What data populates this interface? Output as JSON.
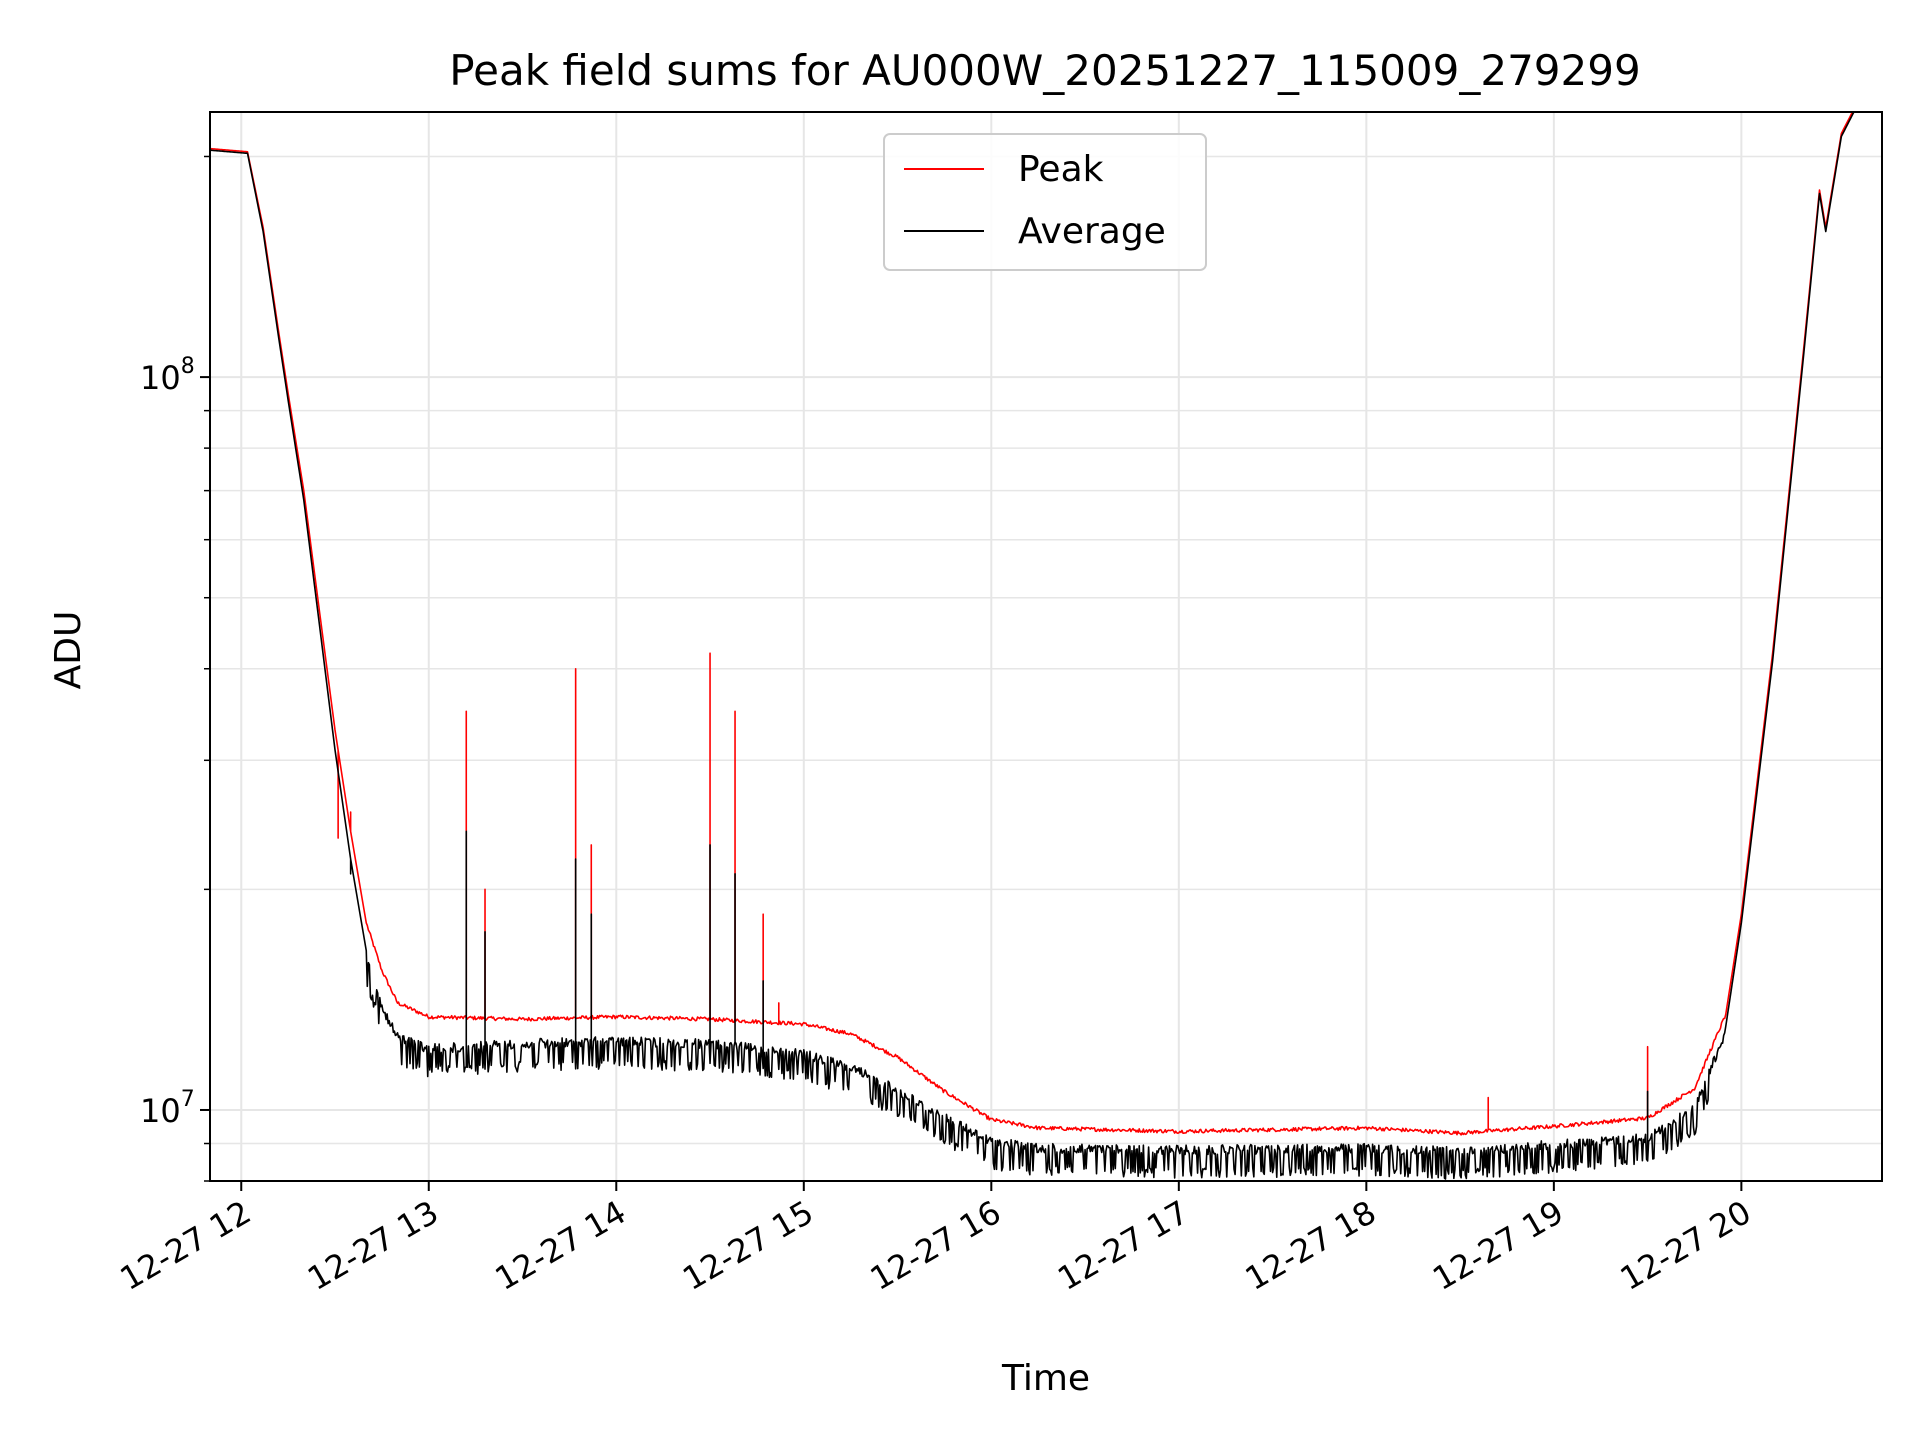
{
  "chart_data": {
    "type": "line",
    "title": "Peak field sums for AU000W_20251227_115009_279299",
    "xlabel": "Time",
    "ylabel": "ADU",
    "yscale": "log",
    "ylim": [
      8000000,
      230000000
    ],
    "xlim": [
      "2025-12-27 11:50",
      "2025-12-27 20:45"
    ],
    "grid": true,
    "legend": {
      "placement": "upper center"
    },
    "x_ticks": [
      {
        "x": "2025-12-27 12:00",
        "label": "12-27 12"
      },
      {
        "x": "2025-12-27 13:00",
        "label": "12-27 13"
      },
      {
        "x": "2025-12-27 14:00",
        "label": "12-27 14"
      },
      {
        "x": "2025-12-27 15:00",
        "label": "12-27 15"
      },
      {
        "x": "2025-12-27 16:00",
        "label": "12-27 16"
      },
      {
        "x": "2025-12-27 17:00",
        "label": "12-27 17"
      },
      {
        "x": "2025-12-27 18:00",
        "label": "12-27 18"
      },
      {
        "x": "2025-12-27 19:00",
        "label": "12-27 19"
      },
      {
        "x": "2025-12-27 20:00",
        "label": "12-27 20"
      }
    ],
    "y_ticks": [
      {
        "y": 10000000,
        "base": "10",
        "exp": "7"
      },
      {
        "y": 100000000,
        "base": "10",
        "exp": "8"
      }
    ],
    "series": [
      {
        "name": "Peak",
        "color": "#ff0000",
        "points": [
          [
            "2025-12-27 11:50",
            205000000
          ],
          [
            "2025-12-27 12:02",
            203000000
          ],
          [
            "2025-12-27 12:07",
            160000000
          ],
          [
            "2025-12-27 12:12",
            115000000
          ],
          [
            "2025-12-27 12:15",
            95000000
          ],
          [
            "2025-12-27 12:20",
            70000000
          ],
          [
            "2025-12-27 12:25",
            48000000
          ],
          [
            "2025-12-27 12:30",
            33000000
          ],
          [
            "2025-12-27 12:35",
            24000000
          ],
          [
            "2025-12-27 12:40",
            18000000
          ],
          [
            "2025-12-27 12:45",
            15500000
          ],
          [
            "2025-12-27 12:50",
            14000000
          ],
          [
            "2025-12-27 13:00",
            13400000
          ],
          [
            "2025-12-27 13:30",
            13300000
          ],
          [
            "2025-12-27 14:00",
            13400000
          ],
          [
            "2025-12-27 14:30",
            13300000
          ],
          [
            "2025-12-27 15:00",
            13100000
          ],
          [
            "2025-12-27 15:15",
            12700000
          ],
          [
            "2025-12-27 15:30",
            11800000
          ],
          [
            "2025-12-27 15:45",
            10600000
          ],
          [
            "2025-12-27 16:00",
            9700000
          ],
          [
            "2025-12-27 16:15",
            9450000
          ],
          [
            "2025-12-27 17:00",
            9350000
          ],
          [
            "2025-12-27 18:00",
            9450000
          ],
          [
            "2025-12-27 18:30",
            9300000
          ],
          [
            "2025-12-27 19:00",
            9500000
          ],
          [
            "2025-12-27 19:30",
            9750000
          ],
          [
            "2025-12-27 19:45",
            10700000
          ],
          [
            "2025-12-27 19:55",
            13500000
          ],
          [
            "2025-12-27 20:00",
            18500000
          ],
          [
            "2025-12-27 20:10",
            42000000
          ],
          [
            "2025-12-27 20:20",
            110000000
          ],
          [
            "2025-12-27 20:25",
            180000000
          ],
          [
            "2025-12-27 20:27",
            160000000
          ],
          [
            "2025-12-27 20:32",
            215000000
          ],
          [
            "2025-12-27 20:36",
            232000000
          ]
        ],
        "spikes": [
          [
            "2025-12-27 12:31",
            23500000
          ],
          [
            "2025-12-27 12:35",
            25500000
          ],
          [
            "2025-12-27 13:12",
            35000000
          ],
          [
            "2025-12-27 13:18",
            20000000
          ],
          [
            "2025-12-27 13:47",
            40000000
          ],
          [
            "2025-12-27 13:52",
            23000000
          ],
          [
            "2025-12-27 14:30",
            42000000
          ],
          [
            "2025-12-27 14:38",
            35000000
          ],
          [
            "2025-12-27 14:47",
            18500000
          ],
          [
            "2025-12-27 14:52",
            14000000
          ],
          [
            "2025-12-27 18:39",
            10400000
          ],
          [
            "2025-12-27 19:30",
            12200000
          ],
          [
            "2025-12-27 19:50",
            12100000
          ]
        ]
      },
      {
        "name": "Average",
        "color": "#000000",
        "points": [
          [
            "2025-12-27 11:50",
            204000000
          ],
          [
            "2025-12-27 12:02",
            202000000
          ],
          [
            "2025-12-27 12:07",
            158000000
          ],
          [
            "2025-12-27 12:12",
            113000000
          ],
          [
            "2025-12-27 12:15",
            93000000
          ],
          [
            "2025-12-27 12:20",
            68000000
          ],
          [
            "2025-12-27 12:25",
            46000000
          ],
          [
            "2025-12-27 12:30",
            31000000
          ],
          [
            "2025-12-27 12:35",
            22000000
          ],
          [
            "2025-12-27 12:40",
            16500000
          ],
          [
            "2025-12-27 12:45",
            14000000
          ],
          [
            "2025-12-27 12:50",
            12800000
          ],
          [
            "2025-12-27 13:00",
            12300000
          ],
          [
            "2025-12-27 13:30",
            12500000
          ],
          [
            "2025-12-27 14:00",
            12600000
          ],
          [
            "2025-12-27 14:30",
            12500000
          ],
          [
            "2025-12-27 15:00",
            12100000
          ],
          [
            "2025-12-27 15:15",
            11600000
          ],
          [
            "2025-12-27 15:30",
            10800000
          ],
          [
            "2025-12-27 15:45",
            9900000
          ],
          [
            "2025-12-27 16:00",
            9200000
          ],
          [
            "2025-12-27 16:15",
            9000000
          ],
          [
            "2025-12-27 17:00",
            8950000
          ],
          [
            "2025-12-27 18:00",
            9000000
          ],
          [
            "2025-12-27 18:30",
            8900000
          ],
          [
            "2025-12-27 19:00",
            9100000
          ],
          [
            "2025-12-27 19:30",
            9300000
          ],
          [
            "2025-12-27 19:45",
            10200000
          ],
          [
            "2025-12-27 19:55",
            13000000
          ],
          [
            "2025-12-27 20:00",
            18000000
          ],
          [
            "2025-12-27 20:10",
            41000000
          ],
          [
            "2025-12-27 20:20",
            108000000
          ],
          [
            "2025-12-27 20:25",
            178000000
          ],
          [
            "2025-12-27 20:27",
            158000000
          ],
          [
            "2025-12-27 20:32",
            213000000
          ],
          [
            "2025-12-27 20:36",
            230000000
          ]
        ],
        "spikes": [
          [
            "2025-12-27 12:35",
            21000000
          ],
          [
            "2025-12-27 13:12",
            24000000
          ],
          [
            "2025-12-27 13:18",
            17500000
          ],
          [
            "2025-12-27 13:47",
            22000000
          ],
          [
            "2025-12-27 13:52",
            18500000
          ],
          [
            "2025-12-27 14:30",
            23000000
          ],
          [
            "2025-12-27 14:38",
            21000000
          ],
          [
            "2025-12-27 14:47",
            15000000
          ],
          [
            "2025-12-27 19:30",
            10600000
          ]
        ]
      }
    ]
  }
}
